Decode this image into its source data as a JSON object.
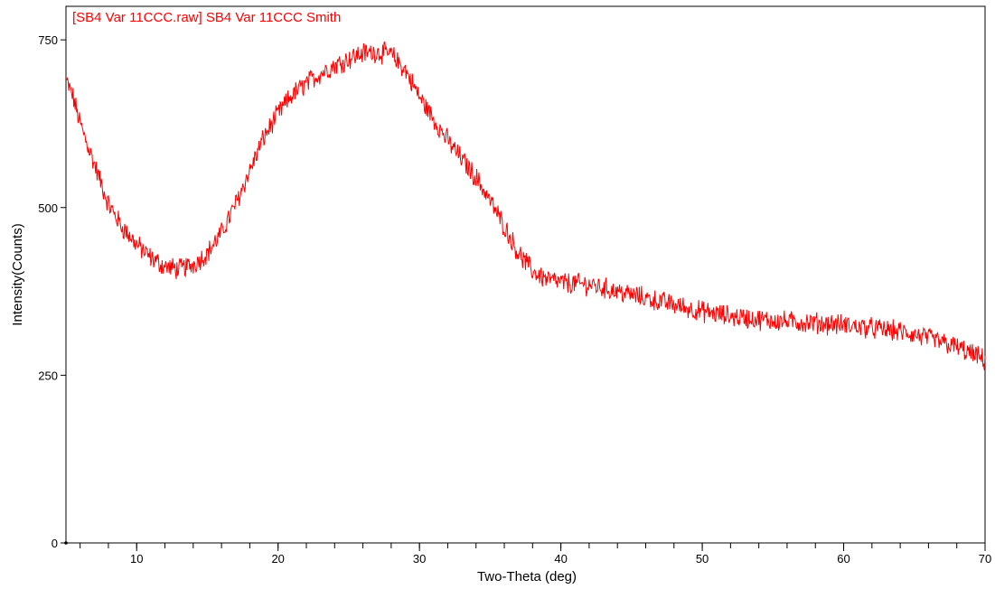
{
  "chart_data": {
    "type": "line",
    "title": "[SB4 Var 11CCC.raw] SB4 Var 11CCC Smith",
    "xlabel": "Two-Theta (deg)",
    "ylabel": "Intensity(Counts)",
    "xlim": [
      5,
      70
    ],
    "ylim": [
      0,
      800
    ],
    "xticks_major": [
      10,
      20,
      30,
      40,
      50,
      60,
      70
    ],
    "xticks_minor_step": 2,
    "yticks": [
      0,
      250,
      500,
      750
    ],
    "grid": false,
    "legend": "none",
    "series_color": "#ff0000",
    "series": [
      {
        "x": [
          5,
          5.5,
          6,
          7,
          8,
          9,
          10,
          11,
          12,
          13,
          14,
          15,
          16,
          17,
          18,
          19,
          20,
          21,
          22,
          23,
          24,
          25,
          26,
          27,
          28,
          29,
          30,
          31,
          32,
          33,
          34,
          35,
          36,
          37,
          38,
          39,
          40,
          42,
          44,
          46,
          48,
          50,
          52,
          54,
          56,
          58,
          60,
          62,
          64,
          66,
          68,
          70
        ],
        "values": [
          690,
          665,
          625,
          565,
          505,
          470,
          445,
          425,
          412,
          408,
          415,
          432,
          462,
          505,
          555,
          605,
          640,
          668,
          685,
          700,
          712,
          722,
          730,
          732,
          728,
          705,
          665,
          632,
          600,
          572,
          545,
          510,
          472,
          432,
          405,
          393,
          388,
          385,
          375,
          365,
          355,
          345,
          338,
          333,
          330,
          328,
          325,
          320,
          315,
          305,
          292,
          272
        ]
      }
    ],
    "noise_amplitude": 14,
    "sample_step": 0.05
  }
}
